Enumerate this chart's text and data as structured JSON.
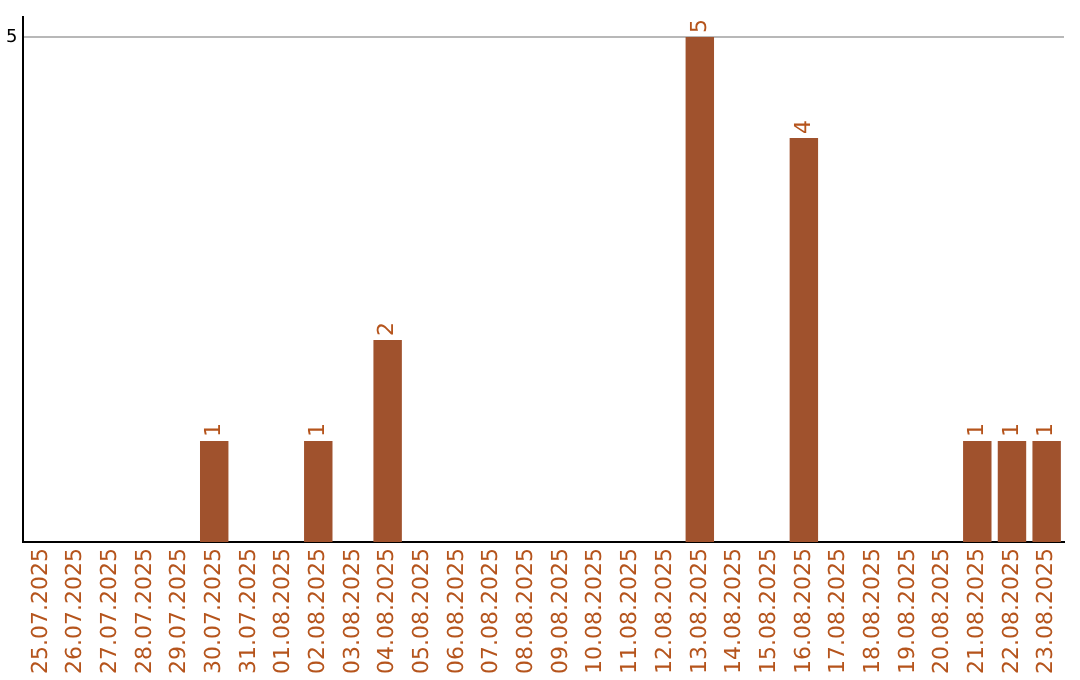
{
  "chart_data": {
    "type": "bar",
    "categories": [
      "25.07.2025",
      "26.07.2025",
      "27.07.2025",
      "28.07.2025",
      "29.07.2025",
      "30.07.2025",
      "31.07.2025",
      "01.08.2025",
      "02.08.2025",
      "03.08.2025",
      "04.08.2025",
      "05.08.2025",
      "06.08.2025",
      "07.08.2025",
      "08.08.2025",
      "09.08.2025",
      "10.08.2025",
      "11.08.2025",
      "12.08.2025",
      "13.08.2025",
      "14.08.2025",
      "15.08.2025",
      "16.08.2025",
      "17.08.2025",
      "18.08.2025",
      "19.08.2025",
      "20.08.2025",
      "21.08.2025",
      "22.08.2025",
      "23.08.2025"
    ],
    "values": [
      0,
      0,
      0,
      0,
      0,
      1,
      0,
      0,
      1,
      0,
      2,
      0,
      0,
      0,
      0,
      0,
      0,
      0,
      0,
      5,
      0,
      0,
      4,
      0,
      0,
      0,
      0,
      1,
      1,
      1
    ],
    "value_labels": [
      null,
      null,
      null,
      null,
      null,
      "1",
      null,
      null,
      "1",
      null,
      "2",
      null,
      null,
      null,
      null,
      null,
      null,
      null,
      null,
      "5",
      null,
      null,
      "4",
      null,
      null,
      null,
      null,
      "1",
      "1",
      "1"
    ],
    "color": "#a0522d",
    "ylim": [
      0,
      5.2
    ],
    "yticks": [
      5
    ],
    "grid": "y",
    "legend": false
  }
}
